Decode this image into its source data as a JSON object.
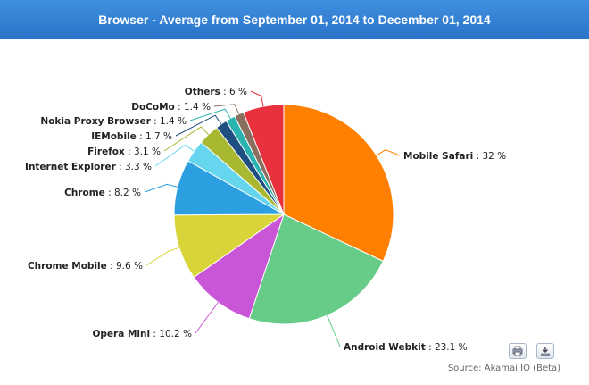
{
  "chart_data": {
    "type": "pie",
    "title": "Browser - Average from September 01, 2014 to December 01, 2014",
    "source": "Source: Akamai IO (Beta)",
    "slices": [
      {
        "name": "Mobile Safari",
        "value": 32,
        "label": "32 %",
        "color": "#ff7f00"
      },
      {
        "name": "Android Webkit",
        "value": 23.1,
        "label": "23.1 %",
        "color": "#66cc88"
      },
      {
        "name": "Opera Mini",
        "value": 10.2,
        "label": "10.2 %",
        "color": "#c956d6"
      },
      {
        "name": "Chrome Mobile",
        "value": 9.6,
        "label": "9.6 %",
        "color": "#d9d43a"
      },
      {
        "name": "Chrome",
        "value": 8.2,
        "label": "8.2 %",
        "color": "#2b9fe0"
      },
      {
        "name": "Internet Explorer",
        "value": 3.3,
        "label": "3.3 %",
        "color": "#66d6ee"
      },
      {
        "name": "Firefox",
        "value": 3.1,
        "label": "3.1 %",
        "color": "#a8b830"
      },
      {
        "name": "IEMobile",
        "value": 1.7,
        "label": "1.7 %",
        "color": "#1f4e80"
      },
      {
        "name": "Nokia Proxy Browser",
        "value": 1.4,
        "label": "1.4 %",
        "color": "#2ab3b0"
      },
      {
        "name": "DoCoMo",
        "value": 1.4,
        "label": "1.4 %",
        "color": "#8a6e5e"
      },
      {
        "name": "Others",
        "value": 6,
        "label": "6 %",
        "color": "#e8313c"
      }
    ]
  },
  "colors": {
    "header": "#2f7fd4",
    "background": "#ffffff"
  },
  "toolbar": {
    "print_icon": "printer-icon",
    "download_icon": "download-icon"
  }
}
